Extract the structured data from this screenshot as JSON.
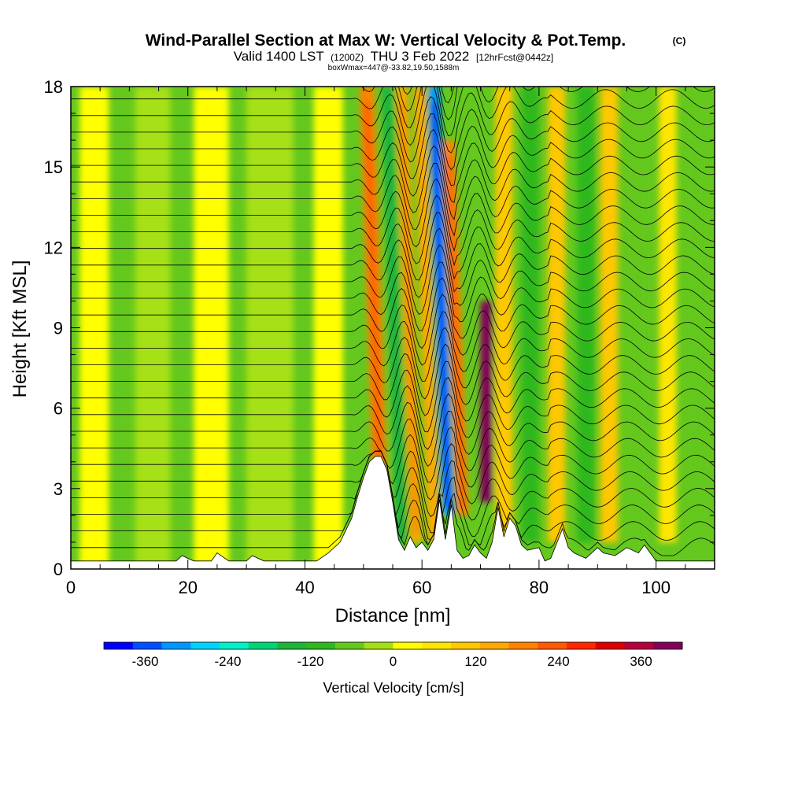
{
  "header": {
    "title": "Wind-Parallel Section at Max W: Vertical Velocity & Pot.Temp.",
    "copyright": "(C)",
    "valid_prefix": "Valid 1400 LST",
    "valid_utc": "(1200Z)",
    "valid_date": "THU 3 Feb 2022",
    "forecast_info": "[12hrFcst@0442z]",
    "box_info": "boxWmax=447@-33.82,19.50,1588m"
  },
  "chart_data": {
    "type": "heatmap",
    "xlabel": "Distance [nm]",
    "ylabel": "Height [Kft MSL]",
    "xlim": [
      0,
      110
    ],
    "ylim": [
      0,
      18
    ],
    "x_ticks": [
      0,
      20,
      40,
      60,
      80,
      100
    ],
    "y_ticks": [
      0,
      3,
      6,
      9,
      12,
      15,
      18
    ],
    "colorbar": {
      "label": "Vertical Velocity [cm/s]",
      "range": [
        -420,
        420
      ],
      "tick_values": [
        -360,
        -240,
        -120,
        0,
        120,
        240,
        360
      ],
      "tick_labels": [
        "-360",
        "-240",
        "-120",
        "0",
        "120",
        "240",
        "360"
      ],
      "colors": [
        "#0000ff",
        "#0050ff",
        "#0096ff",
        "#00d2ff",
        "#00f0c8",
        "#00d278",
        "#1eb43c",
        "#2eb81e",
        "#64c81e",
        "#a6e014",
        "#ffff00",
        "#ffe600",
        "#ffc800",
        "#ffaa00",
        "#ff8200",
        "#ff5a00",
        "#ff2800",
        "#dc0000",
        "#b4003c",
        "#82005a"
      ]
    },
    "terrain_profile_kft": [
      [
        0,
        0.3
      ],
      [
        10,
        0.3
      ],
      [
        18,
        0.3
      ],
      [
        19,
        0.5
      ],
      [
        21,
        0.3
      ],
      [
        24,
        0.3
      ],
      [
        25,
        0.6
      ],
      [
        27,
        0.3
      ],
      [
        30,
        0.3
      ],
      [
        31,
        0.5
      ],
      [
        33,
        0.3
      ],
      [
        42,
        0.3
      ],
      [
        44,
        0.6
      ],
      [
        46,
        1.0
      ],
      [
        48,
        1.9
      ],
      [
        49,
        2.7
      ],
      [
        50,
        3.4
      ],
      [
        51,
        4.0
      ],
      [
        52,
        4.2
      ],
      [
        53,
        4.2
      ],
      [
        54,
        3.7
      ],
      [
        55,
        2.5
      ],
      [
        56,
        1.1
      ],
      [
        57,
        0.7
      ],
      [
        58,
        1.2
      ],
      [
        59,
        0.8
      ],
      [
        60,
        1.0
      ],
      [
        61,
        0.7
      ],
      [
        62,
        1.1
      ],
      [
        63,
        2.6
      ],
      [
        64,
        1.1
      ],
      [
        65,
        2.4
      ],
      [
        66,
        0.7
      ],
      [
        67,
        0.4
      ],
      [
        68,
        0.5
      ],
      [
        69,
        0.9
      ],
      [
        70,
        0.6
      ],
      [
        71,
        0.4
      ],
      [
        72,
        1.0
      ],
      [
        73,
        2.3
      ],
      [
        74,
        1.2
      ],
      [
        75,
        1.9
      ],
      [
        76,
        1.6
      ],
      [
        77,
        0.9
      ],
      [
        78,
        0.7
      ],
      [
        80,
        0.8
      ],
      [
        81,
        0.3
      ],
      [
        82,
        0.4
      ],
      [
        84,
        1.5
      ],
      [
        85,
        0.8
      ],
      [
        86,
        0.6
      ],
      [
        88,
        0.4
      ],
      [
        90,
        0.8
      ],
      [
        91,
        0.6
      ],
      [
        93,
        0.5
      ],
      [
        95,
        0.8
      ],
      [
        97,
        0.6
      ],
      [
        98,
        0.9
      ],
      [
        100,
        0.3
      ],
      [
        105,
        0.3
      ],
      [
        110,
        0.3
      ]
    ],
    "vertical_velocity_features": [
      {
        "x_center": 4,
        "width": 5,
        "z_bottom": 0,
        "z_top": 18,
        "value": 20
      },
      {
        "x_center": 14,
        "width": 6,
        "z_bottom": 0,
        "z_top": 18,
        "value": -30
      },
      {
        "x_center": 24,
        "width": 6,
        "z_bottom": 0,
        "z_top": 18,
        "value": 25
      },
      {
        "x_center": 34,
        "width": 8,
        "z_bottom": 0,
        "z_top": 18,
        "value": -40
      },
      {
        "x_center": 44,
        "width": 5,
        "z_bottom": 0,
        "z_top": 18,
        "value": 30
      },
      {
        "x_center": 53,
        "width": 2.5,
        "z_bottom": 2,
        "z_top": 18,
        "value": 180
      },
      {
        "x_center": 56.5,
        "width": 2,
        "z_bottom": 1,
        "z_top": 18,
        "value": -150
      },
      {
        "x_center": 59,
        "width": 2,
        "z_bottom": 1,
        "z_top": 18,
        "value": 160
      },
      {
        "x_center": 62,
        "width": 2,
        "z_bottom": 1,
        "z_top": 18,
        "value": 140
      },
      {
        "x_center": 64.5,
        "width": 2,
        "z_bottom": 2,
        "z_top": 18,
        "value": -330
      },
      {
        "x_center": 67,
        "width": 2,
        "z_bottom": 2,
        "z_top": 16,
        "value": 200
      },
      {
        "x_center": 71,
        "width": 2,
        "z_bottom": 2.5,
        "z_top": 10,
        "value": 400
      },
      {
        "x_center": 74,
        "width": 3,
        "z_bottom": 1,
        "z_top": 18,
        "value": 120
      },
      {
        "x_center": 78.5,
        "width": 3,
        "z_bottom": 1,
        "z_top": 18,
        "value": -100
      },
      {
        "x_center": 83,
        "width": 3,
        "z_bottom": 1,
        "z_top": 18,
        "value": 110
      },
      {
        "x_center": 88,
        "width": 3,
        "z_bottom": 1,
        "z_top": 18,
        "value": -90
      },
      {
        "x_center": 92,
        "width": 3,
        "z_bottom": 1,
        "z_top": 18,
        "value": 100
      },
      {
        "x_center": 97,
        "width": 3,
        "z_bottom": 1,
        "z_top": 18,
        "value": -80
      },
      {
        "x_center": 102,
        "width": 3,
        "z_bottom": 1,
        "z_top": 18,
        "value": 80
      },
      {
        "x_center": 107,
        "width": 3,
        "z_bottom": 1,
        "z_top": 18,
        "value": -70
      }
    ],
    "potential_temperature_contours": "isentropes every ~0.6 kft, flat west of 48 nm, strongly undulating in the wave region 50–80 nm"
  }
}
